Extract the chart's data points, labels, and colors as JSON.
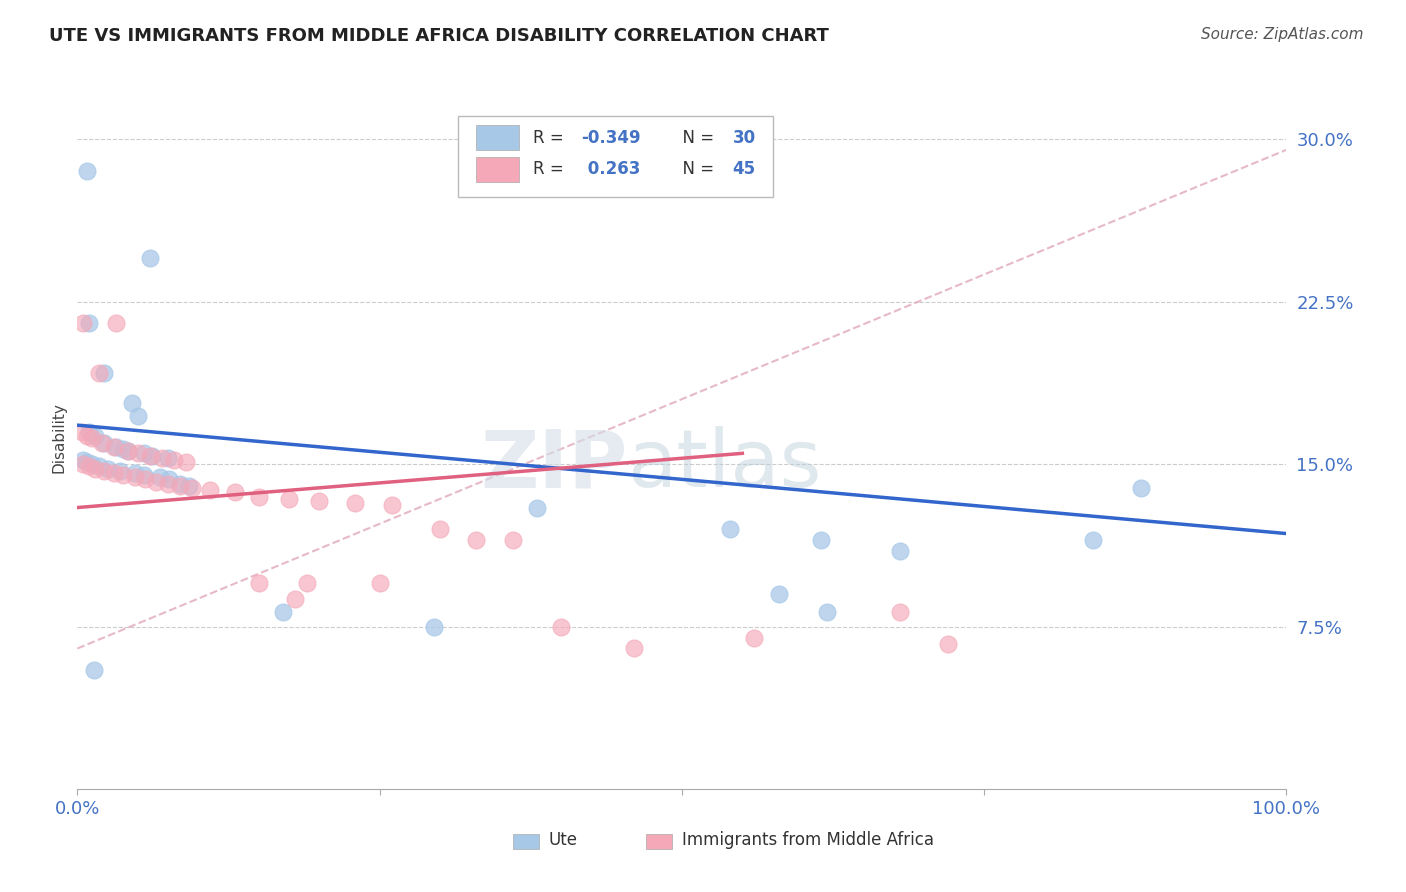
{
  "title": "UTE VS IMMIGRANTS FROM MIDDLE AFRICA DISABILITY CORRELATION CHART",
  "source": "Source: ZipAtlas.com",
  "ylabel": "Disability",
  "xlim": [
    0.0,
    1.0
  ],
  "ylim": [
    0.0,
    0.325
  ],
  "x_ticks": [
    0.0,
    0.25,
    0.5,
    0.75,
    1.0
  ],
  "x_tick_labels": [
    "0.0%",
    "",
    "",
    "",
    "100.0%"
  ],
  "y_ticks": [
    0.075,
    0.15,
    0.225,
    0.3
  ],
  "y_tick_labels": [
    "7.5%",
    "15.0%",
    "22.5%",
    "30.0%"
  ],
  "ute_color": "#a8c8e8",
  "immigrant_color": "#f4a8b8",
  "blue_line_color": "#3366cc",
  "pink_line_color": "#e06080",
  "dashed_line_color": "#e0a8b8",
  "watermark_zip": "ZIP",
  "watermark_atlas": "atlas",
  "ute_points": [
    [
      0.008,
      0.285
    ],
    [
      0.06,
      0.245
    ],
    [
      0.01,
      0.215
    ],
    [
      0.022,
      0.192
    ],
    [
      0.045,
      0.178
    ],
    [
      0.05,
      0.172
    ],
    [
      0.01,
      0.165
    ],
    [
      0.015,
      0.163
    ],
    [
      0.022,
      0.16
    ],
    [
      0.032,
      0.158
    ],
    [
      0.038,
      0.157
    ],
    [
      0.042,
      0.156
    ],
    [
      0.055,
      0.155
    ],
    [
      0.062,
      0.154
    ],
    [
      0.075,
      0.153
    ],
    [
      0.005,
      0.152
    ],
    [
      0.008,
      0.151
    ],
    [
      0.012,
      0.15
    ],
    [
      0.018,
      0.149
    ],
    [
      0.025,
      0.148
    ],
    [
      0.035,
      0.147
    ],
    [
      0.048,
      0.146
    ],
    [
      0.055,
      0.145
    ],
    [
      0.068,
      0.144
    ],
    [
      0.076,
      0.143
    ],
    [
      0.085,
      0.141
    ],
    [
      0.092,
      0.14
    ],
    [
      0.38,
      0.13
    ],
    [
      0.54,
      0.12
    ],
    [
      0.615,
      0.115
    ],
    [
      0.68,
      0.11
    ],
    [
      0.84,
      0.115
    ],
    [
      0.88,
      0.139
    ],
    [
      0.17,
      0.082
    ],
    [
      0.295,
      0.075
    ],
    [
      0.58,
      0.09
    ],
    [
      0.62,
      0.082
    ],
    [
      0.014,
      0.055
    ]
  ],
  "immigrant_points": [
    [
      0.005,
      0.215
    ],
    [
      0.032,
      0.215
    ],
    [
      0.018,
      0.192
    ],
    [
      0.004,
      0.165
    ],
    [
      0.008,
      0.163
    ],
    [
      0.012,
      0.162
    ],
    [
      0.02,
      0.16
    ],
    [
      0.03,
      0.158
    ],
    [
      0.042,
      0.156
    ],
    [
      0.05,
      0.155
    ],
    [
      0.06,
      0.154
    ],
    [
      0.07,
      0.153
    ],
    [
      0.08,
      0.152
    ],
    [
      0.09,
      0.151
    ],
    [
      0.005,
      0.15
    ],
    [
      0.01,
      0.149
    ],
    [
      0.015,
      0.148
    ],
    [
      0.022,
      0.147
    ],
    [
      0.03,
      0.146
    ],
    [
      0.038,
      0.145
    ],
    [
      0.048,
      0.144
    ],
    [
      0.056,
      0.143
    ],
    [
      0.065,
      0.142
    ],
    [
      0.075,
      0.141
    ],
    [
      0.085,
      0.14
    ],
    [
      0.095,
      0.139
    ],
    [
      0.11,
      0.138
    ],
    [
      0.13,
      0.137
    ],
    [
      0.15,
      0.135
    ],
    [
      0.175,
      0.134
    ],
    [
      0.2,
      0.133
    ],
    [
      0.23,
      0.132
    ],
    [
      0.26,
      0.131
    ],
    [
      0.3,
      0.12
    ],
    [
      0.33,
      0.115
    ],
    [
      0.36,
      0.115
    ],
    [
      0.15,
      0.095
    ],
    [
      0.18,
      0.088
    ],
    [
      0.19,
      0.095
    ],
    [
      0.25,
      0.095
    ],
    [
      0.4,
      0.075
    ],
    [
      0.46,
      0.065
    ],
    [
      0.56,
      0.07
    ],
    [
      0.68,
      0.082
    ],
    [
      0.72,
      0.067
    ]
  ],
  "blue_line": {
    "x0": 0.0,
    "y0": 0.168,
    "x1": 1.0,
    "y1": 0.118
  },
  "pink_line": {
    "x0": 0.0,
    "y0": 0.13,
    "x1": 0.55,
    "y1": 0.155
  },
  "dashed_line": {
    "x0": 0.0,
    "y0": 0.065,
    "x1": 1.0,
    "y1": 0.295
  }
}
